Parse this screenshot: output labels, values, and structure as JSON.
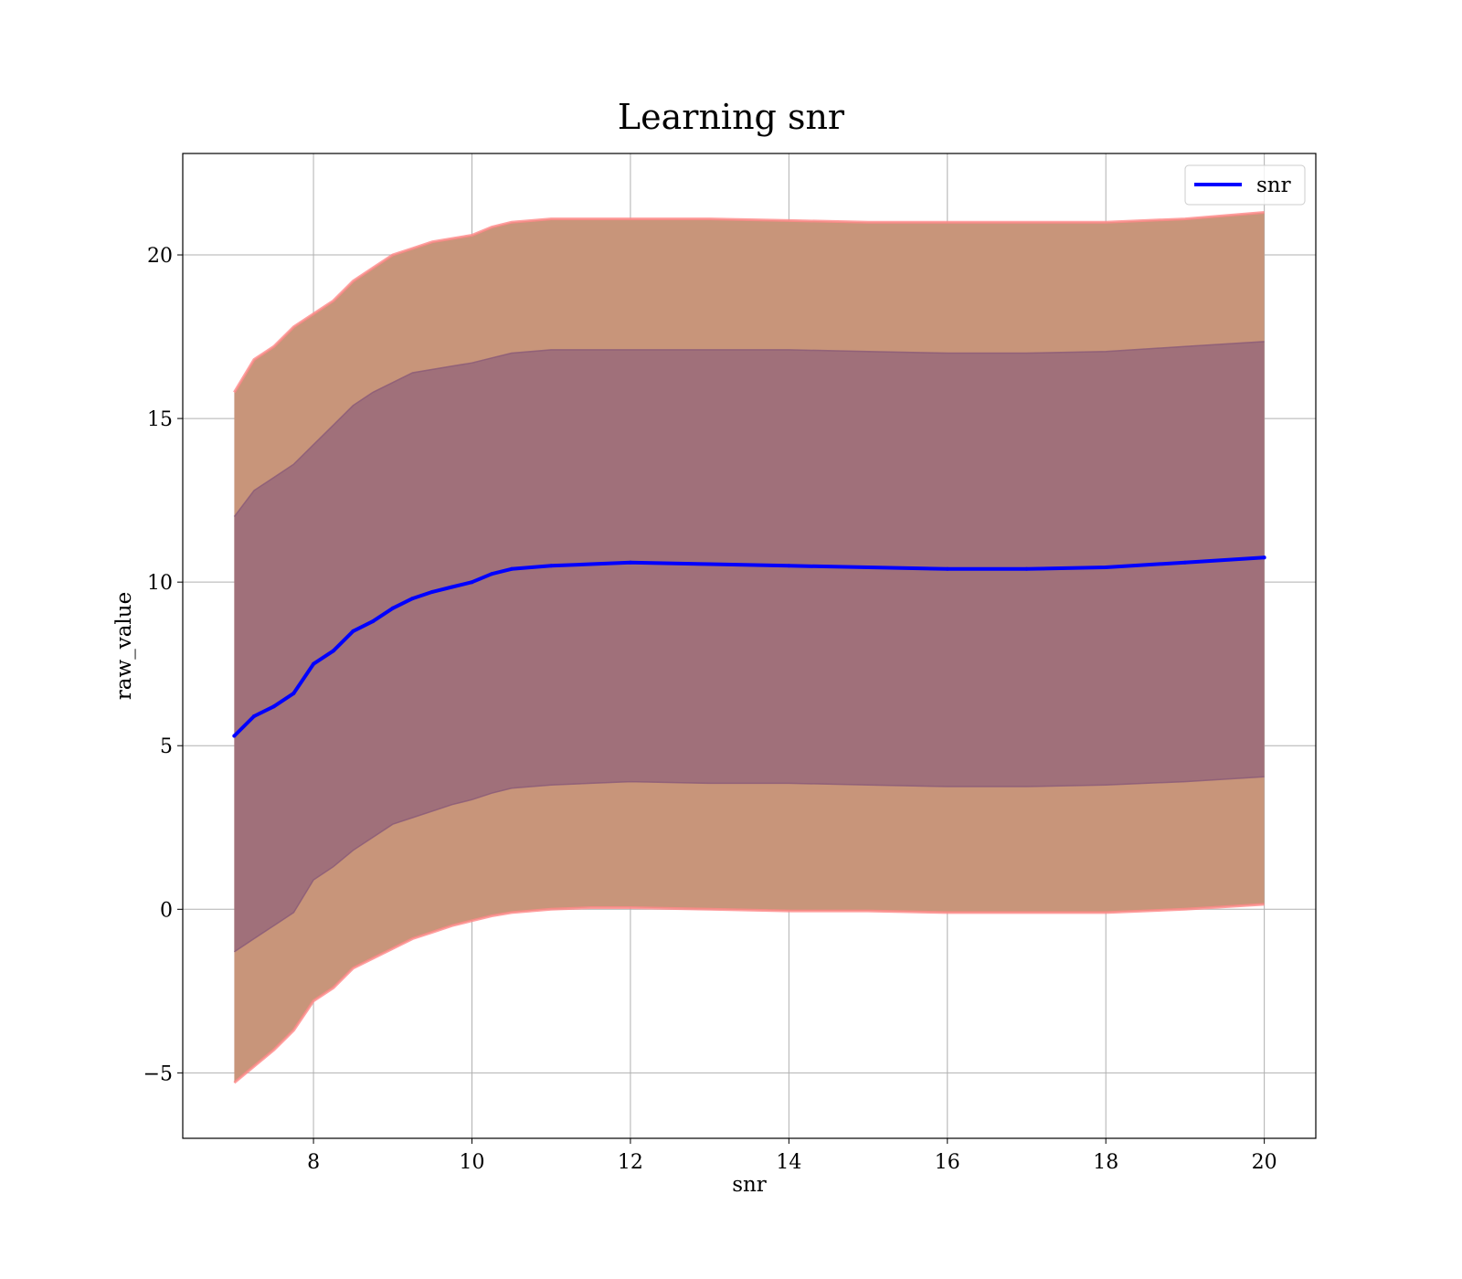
{
  "chart_data": {
    "type": "area",
    "title": "Learning snr",
    "xlabel": "snr",
    "ylabel": "raw_value",
    "xlim": [
      6.35,
      20.65
    ],
    "ylim": [
      -7.0,
      23.1
    ],
    "xticks": [
      8,
      10,
      12,
      14,
      16,
      18,
      20
    ],
    "yticks": [
      -5,
      0,
      5,
      10,
      15,
      20
    ],
    "ytick_labels": [
      "−5",
      "0",
      "5",
      "10",
      "15",
      "20"
    ],
    "grid": true,
    "legend_position": "top-right",
    "colors": {
      "line": "#0000ff",
      "outer_band": "#c8957a",
      "inner_band": "#a0707a",
      "band_edge": "#ff8888",
      "grid": "#b0b0b0"
    },
    "x": [
      7.0,
      7.25,
      7.5,
      7.75,
      8.0,
      8.25,
      8.5,
      8.75,
      9.0,
      9.25,
      9.5,
      9.75,
      10.0,
      10.25,
      10.5,
      11.0,
      11.5,
      12.0,
      13.0,
      14.0,
      15.0,
      16.0,
      17.0,
      18.0,
      19.0,
      20.0
    ],
    "series": [
      {
        "name": "snr",
        "values": [
          5.3,
          5.9,
          6.2,
          6.6,
          7.5,
          7.9,
          8.5,
          8.8,
          9.2,
          9.5,
          9.7,
          9.85,
          10.0,
          10.25,
          10.4,
          10.5,
          10.55,
          10.6,
          10.55,
          10.5,
          10.45,
          10.4,
          10.4,
          10.45,
          10.6,
          10.75
        ]
      }
    ],
    "bands": [
      {
        "kind": "outer",
        "upper": [
          15.8,
          16.8,
          17.2,
          17.8,
          18.2,
          18.6,
          19.2,
          19.6,
          20.0,
          20.2,
          20.4,
          20.5,
          20.6,
          20.85,
          21.0,
          21.1,
          21.1,
          21.1,
          21.1,
          21.05,
          21.0,
          21.0,
          21.0,
          21.0,
          21.1,
          21.3
        ],
        "lower": [
          -5.3,
          -4.8,
          -4.3,
          -3.7,
          -2.8,
          -2.4,
          -1.8,
          -1.5,
          -1.2,
          -0.9,
          -0.7,
          -0.5,
          -0.35,
          -0.2,
          -0.1,
          0.0,
          0.05,
          0.05,
          0.0,
          -0.05,
          -0.05,
          -0.1,
          -0.1,
          -0.1,
          0.0,
          0.15
        ]
      },
      {
        "kind": "inner",
        "upper": [
          12.0,
          12.8,
          13.2,
          13.6,
          14.2,
          14.8,
          15.4,
          15.8,
          16.1,
          16.4,
          16.5,
          16.6,
          16.7,
          16.85,
          17.0,
          17.1,
          17.1,
          17.1,
          17.1,
          17.1,
          17.05,
          17.0,
          17.0,
          17.05,
          17.2,
          17.35
        ],
        "lower": [
          -1.3,
          -0.9,
          -0.5,
          -0.1,
          0.9,
          1.3,
          1.8,
          2.2,
          2.6,
          2.8,
          3.0,
          3.2,
          3.35,
          3.55,
          3.7,
          3.8,
          3.85,
          3.9,
          3.85,
          3.85,
          3.8,
          3.75,
          3.75,
          3.8,
          3.9,
          4.05
        ]
      }
    ]
  },
  "legend": {
    "label": "snr"
  }
}
